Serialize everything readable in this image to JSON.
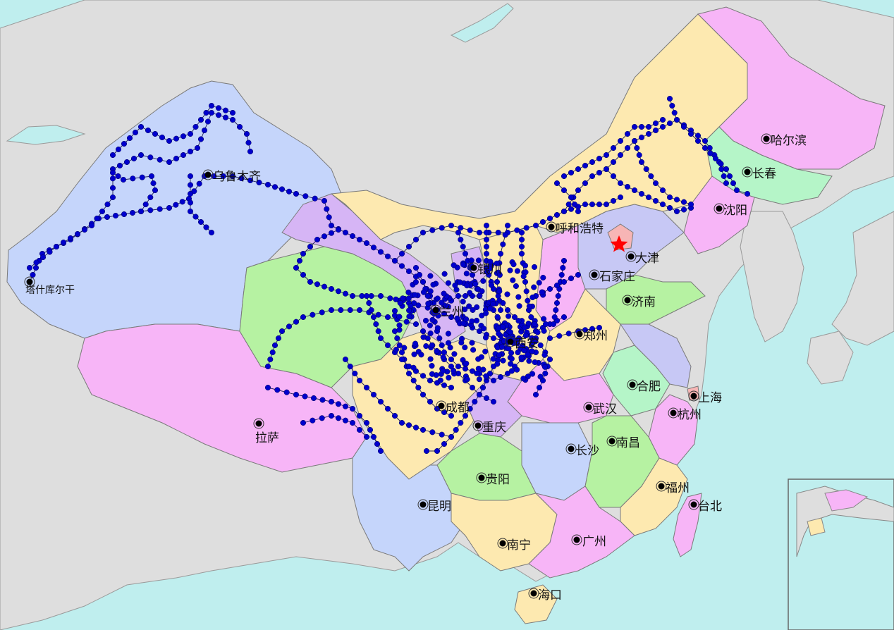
{
  "map": {
    "colors": {
      "sea": "#bfeeee",
      "land": "#dedede",
      "border": "#8a8a8a",
      "river": "#bfeeee",
      "route_line": "#1a1a55",
      "route_point": "#0000cc",
      "city_dot": "#000000",
      "capital_star": "#ff0000",
      "capital_area": "#f7b5b5"
    },
    "capital_icon": "star-icon",
    "cities": [
      {
        "name": "乌鲁木齐"
      },
      {
        "name": "塔什库尔干"
      },
      {
        "name": "拉萨"
      },
      {
        "name": "哈尔滨"
      },
      {
        "name": "长春"
      },
      {
        "name": "沈阳"
      },
      {
        "name": "呼和浩特"
      },
      {
        "name": "大津"
      },
      {
        "name": "石家庄"
      },
      {
        "name": "银川"
      },
      {
        "name": "济南"
      },
      {
        "name": "郑州"
      },
      {
        "name": "西安"
      },
      {
        "name": "兰州"
      },
      {
        "name": "合肥"
      },
      {
        "name": "上海"
      },
      {
        "name": "成都"
      },
      {
        "name": "武汉"
      },
      {
        "name": "杭州"
      },
      {
        "name": "重庆"
      },
      {
        "name": "南昌"
      },
      {
        "name": "长沙"
      },
      {
        "name": "贵阳"
      },
      {
        "name": "福州"
      },
      {
        "name": "昆明"
      },
      {
        "name": "台北"
      },
      {
        "name": "南宁"
      },
      {
        "name": "广州"
      },
      {
        "name": "海口"
      }
    ]
  }
}
